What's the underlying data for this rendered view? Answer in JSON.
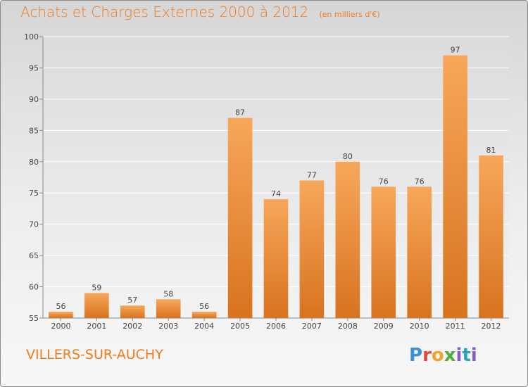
{
  "title": "Achats et Charges Externes 2000 à 2012",
  "unit": "(en milliers d'€)",
  "commune": "VILLERS-SUR-AUCHY",
  "logo": {
    "parts": [
      "P",
      "r",
      "o",
      "x",
      "i",
      "t",
      "i"
    ]
  },
  "colors": {
    "accent": "#f07c1e",
    "bar_top": "#f7a75a",
    "bar_bottom": "#d8731f"
  },
  "chart_data": {
    "type": "bar",
    "categories": [
      "2000",
      "2001",
      "2002",
      "2003",
      "2004",
      "2005",
      "2006",
      "2007",
      "2008",
      "2009",
      "2010",
      "2011",
      "2012"
    ],
    "values": [
      56,
      59,
      57,
      58,
      56,
      87,
      74,
      77,
      80,
      76,
      76,
      97,
      81
    ],
    "ylim": [
      55,
      100
    ],
    "yticks": [
      55,
      60,
      65,
      70,
      75,
      80,
      85,
      90,
      95,
      100
    ],
    "grid": true,
    "xlabel": "",
    "ylabel": ""
  }
}
